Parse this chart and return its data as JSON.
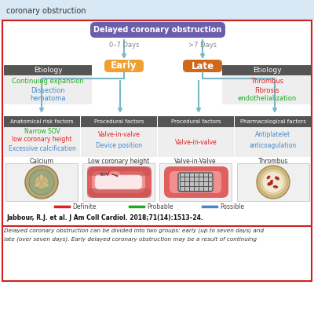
{
  "title_top": "coronary obstruction",
  "main_box_label": "Delayed coronary obstruction",
  "main_box_color": "#6b5fad",
  "main_box_text_color": "#ffffff",
  "early_label": "Early",
  "early_color": "#f0a030",
  "late_label": "Late",
  "late_color": "#d06818",
  "day_label_left": "0–7 Days",
  "day_label_right": ">7 Days",
  "day_label_color": "#888888",
  "etiology_header": "Etiology",
  "etiology_header_bg": "#555555",
  "etiology_header_color": "#ffffff",
  "etiology_left_items": [
    "Continuing expansion",
    "Dissection",
    "hematoma"
  ],
  "etiology_left_colors": [
    "#22aa22",
    "#4488cc",
    "#4488cc"
  ],
  "etiology_right_items": [
    "Thrombus",
    "Fibrosis",
    "endothelialization"
  ],
  "etiology_right_colors": [
    "#dd2222",
    "#dd2222",
    "#22aa22"
  ],
  "factor_header_bg": "#555555",
  "factor_header_color": "#ffffff",
  "factor_headers": [
    "Anatomical risk factors",
    "Procedural factors",
    "Procedural factors",
    "Pharmacological factors"
  ],
  "factor_items": [
    [
      "Narrow SOV",
      "low coronary height",
      "Excessive calcification"
    ],
    [
      "Valve-in-valve",
      "Device position"
    ],
    [
      "Valve-in-valve"
    ],
    [
      "Antiplatelet",
      "anticoagulation"
    ]
  ],
  "factor_colors": [
    [
      "#22aa22",
      "#dd2222",
      "#4488cc"
    ],
    [
      "#dd2222",
      "#4488cc"
    ],
    [
      "#dd2222"
    ],
    [
      "#4488cc",
      "#4488cc"
    ]
  ],
  "image_labels": [
    "Calcium",
    "Low coronary height",
    "Valve-in-Valve",
    "Thrombus"
  ],
  "legend_items": [
    "Definite",
    "Probable",
    "Possible"
  ],
  "legend_colors": [
    "#dd2222",
    "#22aa22",
    "#4488cc"
  ],
  "citation": "Jabbour, R.J. et al. J Am Coll Cardiol. 2018;71(14):1513–24.",
  "caption_line1": "Delayed coronary obstruction can be divided into two groups: early (up to seven days) and",
  "caption_line2": "late (over seven days). Early delayed coronary obstruction may be a result of continuing",
  "border_color": "#cc2222",
  "bg_color": "#ffffff",
  "top_bg_color": "#d8e8f4",
  "factor_bg_color": "#eeeeee",
  "etiology_bg_color": "#eeeeee",
  "arrow_color": "#7ab8c8"
}
